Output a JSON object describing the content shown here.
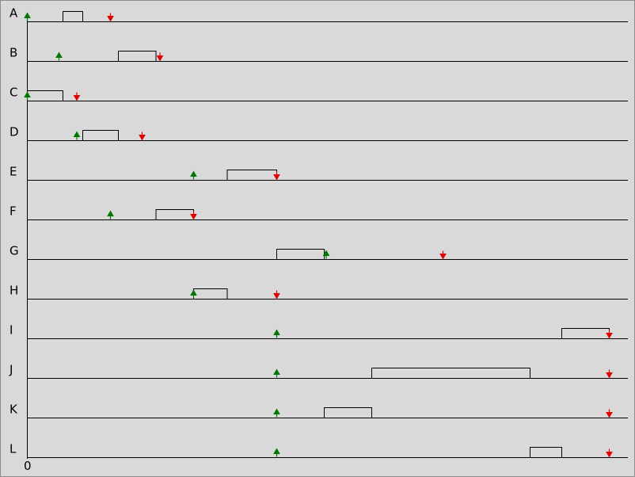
{
  "chart_data": {
    "type": "gantt",
    "x_origin_label": "0",
    "x_unit_px_reference": "time units",
    "arrow_colors": {
      "release": "#007700",
      "deadline": "#e00000"
    },
    "rows": [
      {
        "label": "A",
        "release": 0,
        "deadline": 21,
        "bars": [
          [
            9,
            14
          ]
        ]
      },
      {
        "label": "B",
        "release": 8,
        "deadline": 33.5,
        "bars": [
          [
            23,
            32.5
          ]
        ]
      },
      {
        "label": "C",
        "release": 0,
        "deadline": 12.5,
        "bars": [
          [
            0,
            9
          ]
        ]
      },
      {
        "label": "D",
        "release": 12.5,
        "deadline": 29,
        "bars": [
          [
            14,
            23
          ]
        ]
      },
      {
        "label": "E",
        "release": 42,
        "deadline": 63,
        "bars": [
          [
            50.5,
            63
          ]
        ]
      },
      {
        "label": "F",
        "release": 21,
        "deadline": 42,
        "bars": [
          [
            32.5,
            42
          ]
        ]
      },
      {
        "label": "G",
        "release": 75.5,
        "deadline": 105,
        "bars": [
          [
            63,
            75
          ]
        ]
      },
      {
        "label": "H",
        "release": 42,
        "deadline": 63,
        "bars": [
          [
            42,
            50.5
          ]
        ]
      },
      {
        "label": "I",
        "release": 63,
        "deadline": 147,
        "bars": [
          [
            135,
            147
          ]
        ]
      },
      {
        "label": "J",
        "release": 63,
        "deadline": 147,
        "bars": [
          [
            87,
            127
          ]
        ]
      },
      {
        "label": "K",
        "release": 63,
        "deadline": 147,
        "bars": [
          [
            75,
            87
          ]
        ]
      },
      {
        "label": "L",
        "release": 63,
        "deadline": 147,
        "bars": [
          [
            127,
            135
          ]
        ]
      }
    ]
  }
}
